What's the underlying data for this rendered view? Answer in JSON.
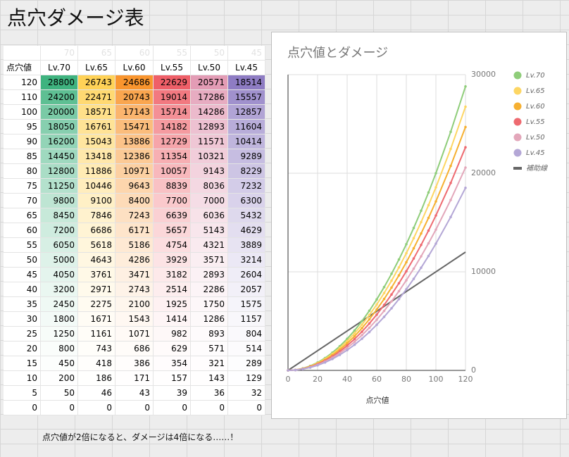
{
  "title": "点穴ダメージ表",
  "table": {
    "level_row": [
      70,
      65,
      60,
      55,
      50,
      45
    ],
    "header": [
      "点穴値",
      "Lv.70",
      "Lv.65",
      "Lv.60",
      "Lv.55",
      "Lv.50",
      "Lv.45"
    ],
    "column_colors": [
      "#3fb37f",
      "#ffd257",
      "#f9952e",
      "#ef5f68",
      "#e39cb5",
      "#8e7cc3"
    ],
    "rows": [
      [
        120,
        28800,
        26743,
        24686,
        22629,
        20571,
        18514
      ],
      [
        110,
        24200,
        22471,
        20743,
        19014,
        17286,
        15557
      ],
      [
        100,
        20000,
        18571,
        17143,
        15714,
        14286,
        12857
      ],
      [
        95,
        18050,
        16761,
        15471,
        14182,
        12893,
        11604
      ],
      [
        90,
        16200,
        15043,
        13886,
        12729,
        11571,
        10414
      ],
      [
        85,
        14450,
        13418,
        12386,
        11354,
        10321,
        9289
      ],
      [
        80,
        12800,
        11886,
        10971,
        10057,
        9143,
        8229
      ],
      [
        75,
        11250,
        10446,
        9643,
        8839,
        8036,
        7232
      ],
      [
        70,
        9800,
        9100,
        8400,
        7700,
        7000,
        6300
      ],
      [
        65,
        8450,
        7846,
        7243,
        6639,
        6036,
        5432
      ],
      [
        60,
        7200,
        6686,
        6171,
        5657,
        5143,
        4629
      ],
      [
        55,
        6050,
        5618,
        5186,
        4754,
        4321,
        3889
      ],
      [
        50,
        5000,
        4643,
        4286,
        3929,
        3571,
        3214
      ],
      [
        45,
        4050,
        3761,
        3471,
        3182,
        2893,
        2604
      ],
      [
        40,
        3200,
        2971,
        2743,
        2514,
        2286,
        2057
      ],
      [
        35,
        2450,
        2275,
        2100,
        1925,
        1750,
        1575
      ],
      [
        30,
        1800,
        1671,
        1543,
        1414,
        1286,
        1157
      ],
      [
        25,
        1250,
        1161,
        1071,
        982,
        893,
        804
      ],
      [
        20,
        800,
        743,
        686,
        629,
        571,
        514
      ],
      [
        15,
        450,
        418,
        386,
        354,
        321,
        289
      ],
      [
        10,
        200,
        186,
        171,
        157,
        143,
        129
      ],
      [
        5,
        50,
        46,
        43,
        39,
        36,
        32
      ],
      [
        0,
        0,
        0,
        0,
        0,
        0,
        0
      ]
    ]
  },
  "note": "点穴値が2倍になると、ダメージは4倍になる……！",
  "chart_data": {
    "type": "line",
    "title": "点穴値とダメージ",
    "x_label": "点穴値",
    "xlim": [
      0,
      120
    ],
    "xticks": [
      0,
      20,
      40,
      60,
      80,
      100,
      120
    ],
    "ylim": [
      0,
      30000
    ],
    "yticks": [
      0,
      10000,
      20000,
      30000
    ],
    "grid": true,
    "series": [
      {
        "name": "Lv.70",
        "color": "#8fcd7a"
      },
      {
        "name": "Lv.65",
        "color": "#fdd663"
      },
      {
        "name": "Lv.60",
        "color": "#f6b031"
      },
      {
        "name": "Lv.55",
        "color": "#ee6a70"
      },
      {
        "name": "Lv.50",
        "color": "#e3a7ba"
      },
      {
        "name": "Lv.45",
        "color": "#b4a7d6"
      }
    ],
    "helper": {
      "name": "補助線",
      "color": "#666666",
      "x": [
        0,
        120
      ],
      "values": [
        0,
        12000
      ]
    }
  }
}
